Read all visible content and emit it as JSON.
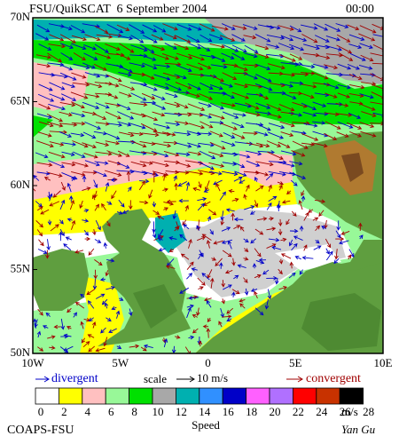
{
  "header": {
    "title": "FSU/QuikSCAT  6 September 2004",
    "time": "00:00"
  },
  "map": {
    "lat_labels": [
      "70N",
      "65N",
      "60N",
      "55N",
      "50N"
    ],
    "lon_labels": [
      "10W",
      "5W",
      "0",
      "5E",
      "10E"
    ]
  },
  "legend": {
    "divergent": "divergent",
    "scale": "scale",
    "scale_value": "10 m/s",
    "convergent": "convergent"
  },
  "colorbar": {
    "ticks": [
      0,
      2,
      4,
      6,
      8,
      10,
      12,
      14,
      16,
      18,
      20,
      22,
      24,
      26,
      28
    ],
    "colors": [
      "#ffffff",
      "#ffff00",
      "#ffc0c0",
      "#98f898",
      "#00e000",
      "#a8a8a8",
      "#00b0b0",
      "#3090ff",
      "#0000c8",
      "#ff60ff",
      "#b070ff",
      "#ff0000",
      "#c83200",
      "#000000"
    ],
    "unit": "m/s",
    "label": "Speed"
  },
  "footer": {
    "source": "COAPS-FSU",
    "author": "Yan Gu"
  }
}
